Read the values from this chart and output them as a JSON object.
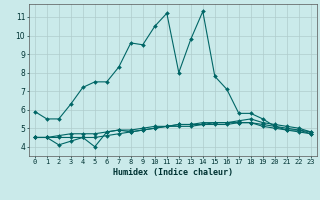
{
  "xlabel": "Humidex (Indice chaleur)",
  "bg_color": "#caeaea",
  "grid_color": "#b0cccc",
  "line_color": "#006666",
  "xlim": [
    -0.5,
    23.5
  ],
  "ylim": [
    3.5,
    11.7
  ],
  "xticks": [
    0,
    1,
    2,
    3,
    4,
    5,
    6,
    7,
    8,
    9,
    10,
    11,
    12,
    13,
    14,
    15,
    16,
    17,
    18,
    19,
    20,
    21,
    22,
    23
  ],
  "yticks": [
    4,
    5,
    6,
    7,
    8,
    9,
    10,
    11
  ],
  "series": [
    [
      5.9,
      5.5,
      5.5,
      6.3,
      7.2,
      7.5,
      7.5,
      8.3,
      9.6,
      9.5,
      10.5,
      11.2,
      8.0,
      9.8,
      11.3,
      7.8,
      7.1,
      5.8,
      5.8,
      5.5,
      5.1,
      4.9,
      4.8,
      4.7
    ],
    [
      4.5,
      4.5,
      4.1,
      4.3,
      4.5,
      4.0,
      4.8,
      4.9,
      4.8,
      4.9,
      5.0,
      5.1,
      5.1,
      5.1,
      5.2,
      5.2,
      5.2,
      5.3,
      5.3,
      5.1,
      5.0,
      4.9,
      4.9,
      4.7
    ],
    [
      4.5,
      4.5,
      4.5,
      4.5,
      4.5,
      4.5,
      4.6,
      4.7,
      4.8,
      4.9,
      5.0,
      5.1,
      5.2,
      5.2,
      5.3,
      5.3,
      5.3,
      5.3,
      5.3,
      5.2,
      5.1,
      5.0,
      4.9,
      4.8
    ],
    [
      4.5,
      4.5,
      4.6,
      4.7,
      4.7,
      4.7,
      4.8,
      4.9,
      4.9,
      5.0,
      5.1,
      5.1,
      5.2,
      5.2,
      5.2,
      5.3,
      5.3,
      5.4,
      5.5,
      5.3,
      5.2,
      5.1,
      5.0,
      4.8
    ]
  ]
}
